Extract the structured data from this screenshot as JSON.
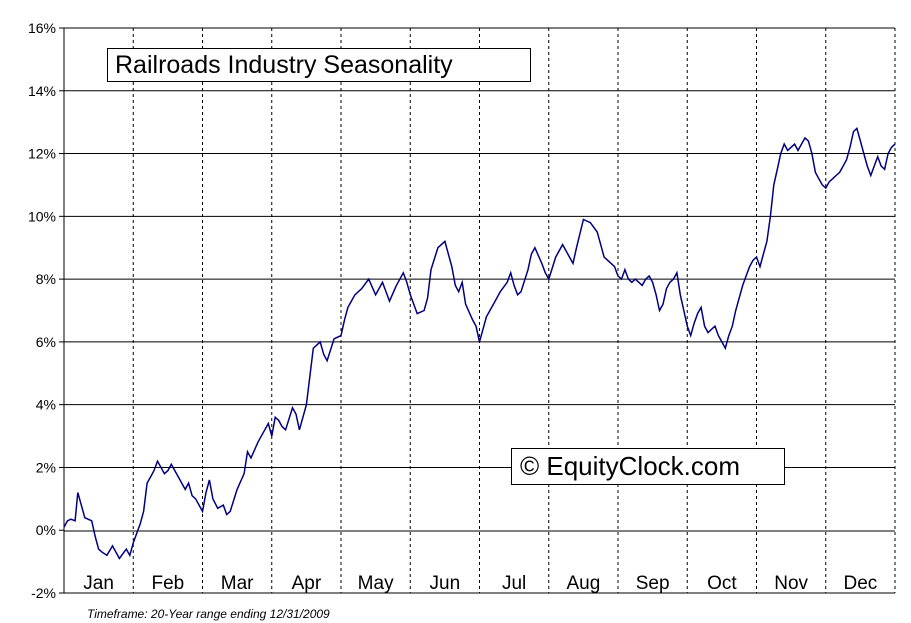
{
  "chart_data": {
    "type": "line",
    "title": "Railroads Industry Seasonality",
    "watermark": "© EquityClock.com",
    "footnote": "Timeframe: 20-Year range ending 12/31/2009",
    "xlabel": "",
    "ylabel": "",
    "ylim": [
      -2,
      16
    ],
    "yticks": [
      "-2%",
      "0%",
      "2%",
      "4%",
      "6%",
      "8%",
      "10%",
      "12%",
      "14%",
      "16%"
    ],
    "ytick_values": [
      -2,
      0,
      2,
      4,
      6,
      8,
      10,
      12,
      14,
      16
    ],
    "xlim": [
      0,
      12
    ],
    "categories": [
      "Jan",
      "Feb",
      "Mar",
      "Apr",
      "May",
      "Jun",
      "Jul",
      "Aug",
      "Sep",
      "Oct",
      "Nov",
      "Dec"
    ],
    "grid": {
      "horizontal": "solid",
      "vertical": "dashed"
    },
    "line_color": "#000080",
    "series": [
      {
        "x": [
          0.0,
          0.05,
          0.1,
          0.16,
          0.2,
          0.25,
          0.3,
          0.4,
          0.45,
          0.5,
          0.55,
          0.62,
          0.7,
          0.8,
          0.9,
          0.95,
          1.0,
          1.05,
          1.1,
          1.15,
          1.2,
          1.25,
          1.3,
          1.35,
          1.45,
          1.5,
          1.55,
          1.65,
          1.75,
          1.8,
          1.85,
          1.9,
          2.0,
          2.05,
          2.1,
          2.15,
          2.22,
          2.3,
          2.35,
          2.4,
          2.5,
          2.6,
          2.65,
          2.7,
          2.8,
          2.9,
          2.95,
          3.0,
          3.05,
          3.1,
          3.15,
          3.2,
          3.3,
          3.35,
          3.4,
          3.5,
          3.6,
          3.7,
          3.75,
          3.8,
          3.9,
          4.0,
          4.05,
          4.1,
          4.15,
          4.2,
          4.3,
          4.4,
          4.5,
          4.6,
          4.65,
          4.7,
          4.8,
          4.9,
          4.95,
          5.0,
          5.1,
          5.2,
          5.25,
          5.3,
          5.4,
          5.5,
          5.6,
          5.65,
          5.7,
          5.75,
          5.8,
          5.9,
          5.95,
          6.0,
          6.1,
          6.2,
          6.3,
          6.4,
          6.45,
          6.5,
          6.55,
          6.6,
          6.7,
          6.75,
          6.8,
          6.9,
          6.95,
          7.0,
          7.1,
          7.2,
          7.3,
          7.35,
          7.4,
          7.5,
          7.6,
          7.7,
          7.75,
          7.8,
          7.9,
          7.95,
          8.0,
          8.05,
          8.1,
          8.15,
          8.2,
          8.25,
          8.3,
          8.35,
          8.4,
          8.45,
          8.5,
          8.55,
          8.6,
          8.65,
          8.7,
          8.75,
          8.8,
          8.85,
          8.9,
          8.95,
          9.0,
          9.05,
          9.1,
          9.15,
          9.2,
          9.25,
          9.3,
          9.35,
          9.4,
          9.45,
          9.5,
          9.55,
          9.6,
          9.65,
          9.7,
          9.75,
          9.8,
          9.85,
          9.9,
          9.95,
          10.0,
          10.05,
          10.1,
          10.15,
          10.2,
          10.25,
          10.3,
          10.35,
          10.4,
          10.45,
          10.5,
          10.55,
          10.6,
          10.65,
          10.7,
          10.75,
          10.8,
          10.85,
          10.9,
          10.95,
          11.0,
          11.05,
          11.1,
          11.15,
          11.2,
          11.25,
          11.3,
          11.35,
          11.4,
          11.45,
          11.5,
          11.55,
          11.6,
          11.65,
          11.7,
          11.75,
          11.8,
          11.85,
          11.9,
          11.95,
          12.0
        ],
        "y": [
          0.1,
          0.3,
          0.35,
          0.3,
          1.2,
          0.8,
          0.4,
          0.3,
          -0.2,
          -0.6,
          -0.7,
          -0.8,
          -0.5,
          -0.9,
          -0.6,
          -0.8,
          -0.4,
          -0.1,
          0.2,
          0.6,
          1.5,
          1.7,
          1.9,
          2.2,
          1.8,
          1.9,
          2.1,
          1.7,
          1.3,
          1.5,
          1.1,
          1.0,
          0.6,
          1.2,
          1.6,
          1.0,
          0.7,
          0.8,
          0.5,
          0.6,
          1.3,
          1.8,
          2.5,
          2.3,
          2.8,
          3.2,
          3.4,
          3.0,
          3.6,
          3.5,
          3.3,
          3.2,
          3.9,
          3.7,
          3.2,
          4.0,
          5.8,
          6.0,
          5.6,
          5.4,
          6.1,
          6.2,
          6.7,
          7.1,
          7.3,
          7.5,
          7.7,
          8.0,
          7.5,
          7.9,
          7.6,
          7.3,
          7.8,
          8.2,
          7.9,
          7.5,
          6.9,
          7.0,
          7.4,
          8.3,
          9.0,
          9.2,
          8.4,
          7.8,
          7.6,
          7.9,
          7.2,
          6.7,
          6.5,
          6.0,
          6.8,
          7.2,
          7.6,
          7.9,
          8.2,
          7.8,
          7.5,
          7.6,
          8.3,
          8.8,
          9.0,
          8.5,
          8.2,
          8.0,
          8.7,
          9.1,
          8.7,
          8.5,
          9.0,
          9.9,
          9.8,
          9.5,
          9.1,
          8.7,
          8.5,
          8.4,
          8.1,
          8.0,
          8.3,
          8.0,
          7.9,
          8.0,
          7.9,
          7.8,
          8.0,
          8.1,
          7.9,
          7.5,
          7.0,
          7.2,
          7.7,
          7.9,
          8.0,
          8.2,
          7.5,
          7.0,
          6.5,
          6.2,
          6.6,
          6.9,
          7.1,
          6.5,
          6.3,
          6.4,
          6.5,
          6.2,
          6.0,
          5.8,
          6.2,
          6.5,
          7.0,
          7.4,
          7.8,
          8.1,
          8.4,
          8.6,
          8.7,
          8.4,
          8.8,
          9.2,
          10.0,
          11.0,
          11.5,
          12.0,
          12.3,
          12.1,
          12.2,
          12.3,
          12.1,
          12.3,
          12.5,
          12.4,
          12.0,
          11.4,
          11.2,
          11.0,
          10.9,
          11.1,
          11.2,
          11.3,
          11.4,
          11.6,
          11.8,
          12.2,
          12.7,
          12.8,
          12.4,
          12.0,
          11.6,
          11.3,
          11.6,
          11.9,
          11.6,
          11.5,
          12.0,
          12.2,
          12.3
        ],
        "name": ""
      }
    ]
  }
}
